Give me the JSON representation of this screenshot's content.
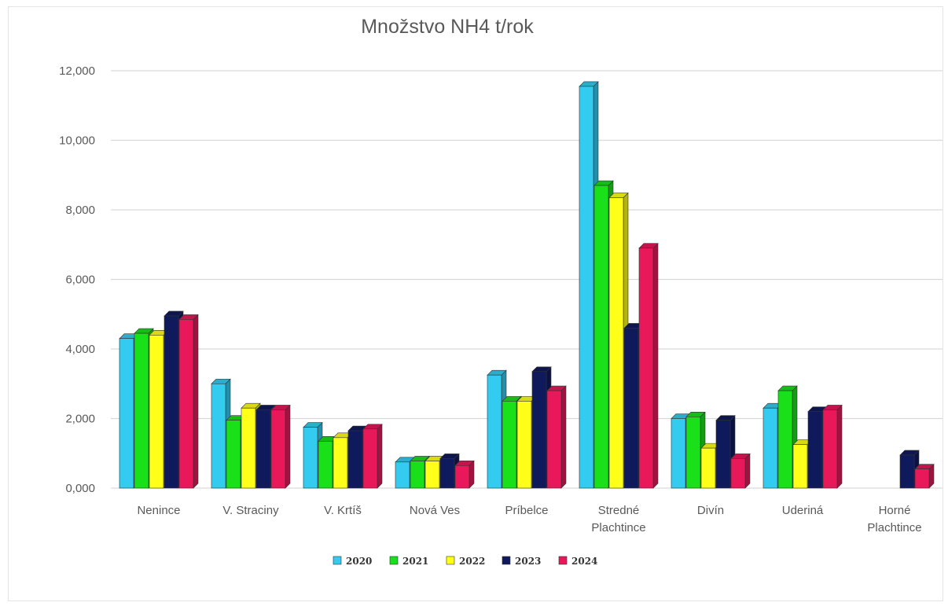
{
  "chart_data": {
    "type": "bar",
    "title": "Množstvo NH4 t/rok",
    "categories": [
      [
        "Nenince"
      ],
      [
        "V. Straciny"
      ],
      [
        "V. Krtíš"
      ],
      [
        "Nová Ves"
      ],
      [
        "Príbelce"
      ],
      [
        "Stredné",
        "Plachtince"
      ],
      [
        "Divín"
      ],
      [
        "Uderiná"
      ],
      [
        "Horné",
        "Plachtince"
      ]
    ],
    "ylim": [
      0,
      12000
    ],
    "yticks": [
      0,
      2000,
      4000,
      6000,
      8000,
      10000,
      12000
    ],
    "ytick_labels": [
      "0,000",
      "2,000",
      "4,000",
      "6,000",
      "8,000",
      "10,000",
      "12,000"
    ],
    "grid": true,
    "legend_position": "bottom",
    "series": [
      {
        "name": "2020",
        "color": "#33ccf0",
        "values": [
          4300,
          3000,
          1750,
          750,
          3250,
          11550,
          2000,
          2300,
          null
        ]
      },
      {
        "name": "2021",
        "color": "#19e019",
        "values": [
          4450,
          1950,
          1350,
          780,
          2500,
          8700,
          2050,
          2800,
          null
        ]
      },
      {
        "name": "2022",
        "color": "#ffff19",
        "values": [
          4400,
          2300,
          1450,
          780,
          2500,
          8350,
          1150,
          1250,
          null
        ]
      },
      {
        "name": "2023",
        "color": "#0f1a5c",
        "values": [
          4950,
          2250,
          1650,
          850,
          3350,
          4600,
          1950,
          2200,
          950
        ]
      },
      {
        "name": "2024",
        "color": "#e8185a",
        "values": [
          4850,
          2250,
          1700,
          650,
          2800,
          6900,
          850,
          2250,
          550
        ]
      }
    ]
  }
}
